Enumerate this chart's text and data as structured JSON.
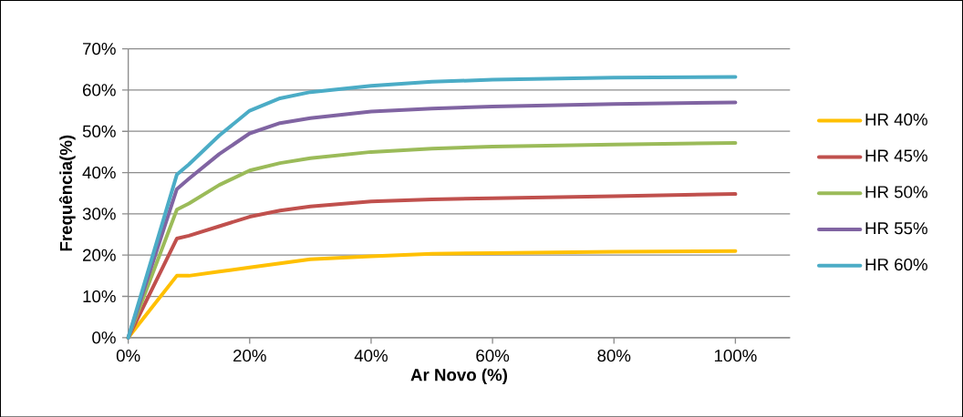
{
  "chart_data": {
    "type": "line",
    "xlabel": "Ar Novo (%)",
    "ylabel": "Frequência(%)",
    "xlim": [
      0,
      109
    ],
    "ylim": [
      0,
      70
    ],
    "xticks": [
      {
        "value": 0,
        "label": "0%"
      },
      {
        "value": 20,
        "label": "20%"
      },
      {
        "value": 40,
        "label": "40%"
      },
      {
        "value": 60,
        "label": "60%"
      },
      {
        "value": 80,
        "label": "80%"
      },
      {
        "value": 100,
        "label": "100%"
      }
    ],
    "yticks": [
      {
        "value": 0,
        "label": "0%"
      },
      {
        "value": 10,
        "label": "10%"
      },
      {
        "value": 20,
        "label": "20%"
      },
      {
        "value": 30,
        "label": "30%"
      },
      {
        "value": 40,
        "label": "40%"
      },
      {
        "value": 50,
        "label": "50%"
      },
      {
        "value": 60,
        "label": "60%"
      },
      {
        "value": 70,
        "label": "70%"
      }
    ],
    "grid": "y",
    "legend": "right",
    "marker": "none",
    "line_style": "solid",
    "x": [
      0,
      8,
      10,
      15,
      20,
      25,
      30,
      40,
      50,
      60,
      80,
      100
    ],
    "series": [
      {
        "name": "HR 40%",
        "color": "#ffc000",
        "values": [
          0,
          15,
          15,
          16,
          17,
          18,
          19,
          19.7,
          20.3,
          20.5,
          20.8,
          21
        ]
      },
      {
        "name": "HR 45%",
        "color": "#c0504d",
        "values": [
          0,
          24,
          24.7,
          27,
          29.3,
          30.8,
          31.8,
          33,
          33.5,
          33.8,
          34.3,
          34.8
        ]
      },
      {
        "name": "HR 50%",
        "color": "#9bbb59",
        "values": [
          0,
          31,
          32.5,
          37,
          40.5,
          42.3,
          43.5,
          45,
          45.8,
          46.3,
          46.8,
          47.2
        ]
      },
      {
        "name": "HR 55%",
        "color": "#8064a2",
        "values": [
          0,
          36,
          38.5,
          44.5,
          49.5,
          52,
          53.2,
          54.8,
          55.5,
          56,
          56.6,
          57
        ]
      },
      {
        "name": "HR 60%",
        "color": "#4bacc6",
        "values": [
          0,
          39.5,
          42,
          49,
          55,
          58,
          59.5,
          61,
          62,
          62.5,
          63,
          63.2
        ]
      }
    ]
  }
}
